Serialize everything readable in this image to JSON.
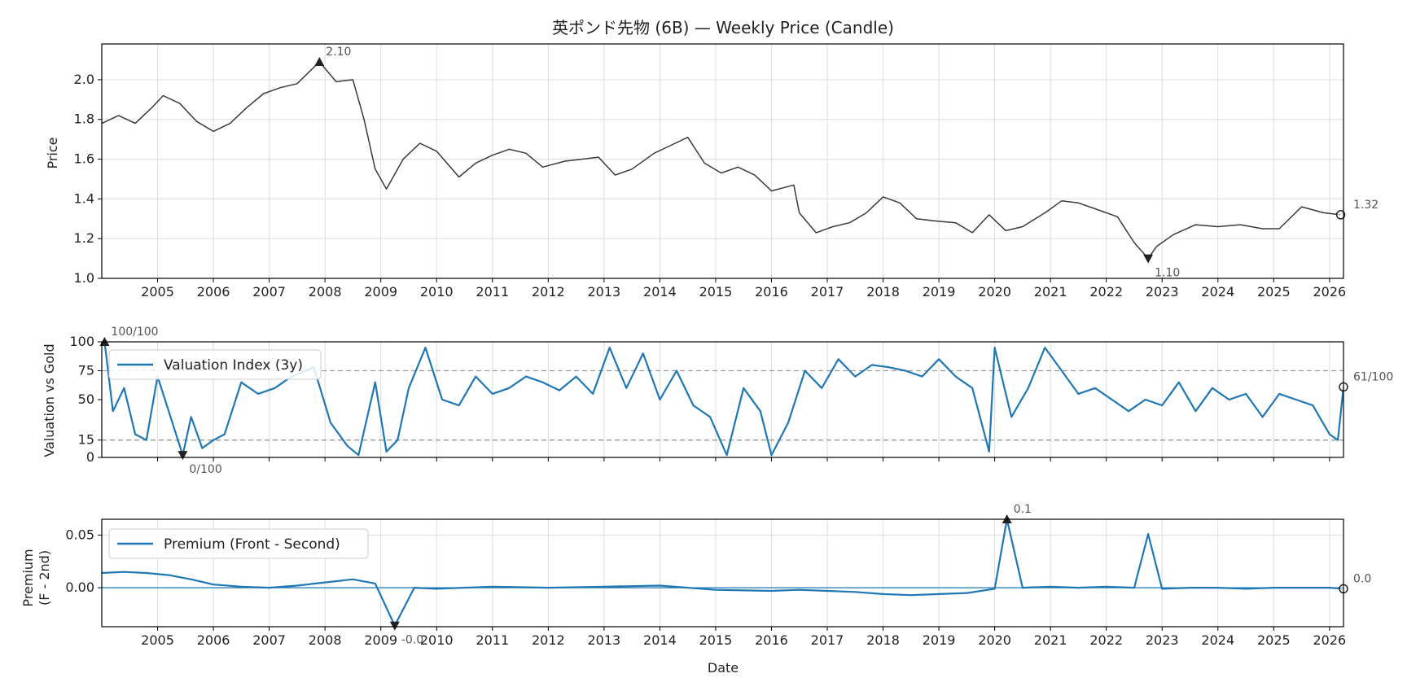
{
  "title": "英ポンド先物 (6B) — Weekly Price (Candle)",
  "colors": {
    "price": "#3a3a3a",
    "series": "#1f77b4",
    "guide": "#999999",
    "marker": "#222222"
  },
  "chart_data": [
    {
      "type": "line",
      "name": "price",
      "ylabel": "Price",
      "ylim": [
        1.0,
        2.18
      ],
      "yticks": [
        1.0,
        1.2,
        1.4,
        1.6,
        1.8,
        2.0
      ],
      "xlim": [
        2004.0,
        2026.25
      ],
      "xticks": [
        2005,
        2006,
        2007,
        2008,
        2009,
        2010,
        2011,
        2012,
        2013,
        2014,
        2015,
        2016,
        2017,
        2018,
        2019,
        2020,
        2021,
        2022,
        2023,
        2024,
        2025,
        2026
      ],
      "grid": true,
      "x": [
        2004.0,
        2004.3,
        2004.6,
        2004.9,
        2005.1,
        2005.4,
        2005.7,
        2006.0,
        2006.3,
        2006.6,
        2006.9,
        2007.2,
        2007.5,
        2007.9,
        2008.2,
        2008.5,
        2008.7,
        2008.9,
        2009.1,
        2009.4,
        2009.7,
        2010.0,
        2010.4,
        2010.7,
        2011.0,
        2011.3,
        2011.6,
        2011.9,
        2012.3,
        2012.6,
        2012.9,
        2013.2,
        2013.5,
        2013.9,
        2014.2,
        2014.5,
        2014.8,
        2015.1,
        2015.4,
        2015.7,
        2016.0,
        2016.4,
        2016.5,
        2016.8,
        2017.1,
        2017.4,
        2017.7,
        2018.0,
        2018.3,
        2018.6,
        2018.9,
        2019.3,
        2019.6,
        2019.9,
        2020.2,
        2020.5,
        2020.9,
        2021.2,
        2021.5,
        2021.9,
        2022.2,
        2022.5,
        2022.75,
        2022.9,
        2023.2,
        2023.6,
        2024.0,
        2024.4,
        2024.8,
        2025.1,
        2025.5,
        2025.9,
        2026.2
      ],
      "y": [
        1.78,
        1.82,
        1.78,
        1.86,
        1.92,
        1.88,
        1.79,
        1.74,
        1.78,
        1.86,
        1.93,
        1.96,
        1.98,
        2.09,
        1.99,
        2.0,
        1.8,
        1.55,
        1.45,
        1.6,
        1.68,
        1.64,
        1.51,
        1.58,
        1.62,
        1.65,
        1.63,
        1.56,
        1.59,
        1.6,
        1.61,
        1.52,
        1.55,
        1.63,
        1.67,
        1.71,
        1.58,
        1.53,
        1.56,
        1.52,
        1.44,
        1.47,
        1.33,
        1.23,
        1.26,
        1.28,
        1.33,
        1.41,
        1.38,
        1.3,
        1.29,
        1.28,
        1.23,
        1.32,
        1.24,
        1.26,
        1.33,
        1.39,
        1.38,
        1.34,
        1.31,
        1.18,
        1.1,
        1.16,
        1.22,
        1.27,
        1.26,
        1.27,
        1.25,
        1.25,
        1.36,
        1.33,
        1.32
      ],
      "annotations": {
        "max_label": "2.10",
        "min_label": "1.10",
        "last_label": "1.32"
      }
    },
    {
      "type": "line",
      "name": "valuation",
      "ylabel": "Valuation vs Gold",
      "ylim": [
        0,
        100
      ],
      "yticks": [
        0,
        15,
        50,
        75,
        100
      ],
      "hlines": [
        15,
        75
      ],
      "legend": "Valuation Index (3y)",
      "legend_position": "top-left",
      "x": [
        2004.05,
        2004.2,
        2004.4,
        2004.6,
        2004.8,
        2005.0,
        2005.2,
        2005.45,
        2005.6,
        2005.8,
        2006.0,
        2006.2,
        2006.5,
        2006.8,
        2007.1,
        2007.4,
        2007.8,
        2008.1,
        2008.4,
        2008.6,
        2008.9,
        2009.1,
        2009.3,
        2009.5,
        2009.8,
        2010.1,
        2010.4,
        2010.7,
        2011.0,
        2011.3,
        2011.6,
        2011.9,
        2012.2,
        2012.5,
        2012.8,
        2013.1,
        2013.4,
        2013.7,
        2014.0,
        2014.3,
        2014.6,
        2014.9,
        2015.2,
        2015.5,
        2015.8,
        2016.0,
        2016.3,
        2016.6,
        2016.9,
        2017.2,
        2017.5,
        2017.8,
        2018.1,
        2018.4,
        2018.7,
        2019.0,
        2019.3,
        2019.6,
        2019.9,
        2020.0,
        2020.3,
        2020.6,
        2020.9,
        2021.2,
        2021.5,
        2021.8,
        2022.1,
        2022.4,
        2022.7,
        2023.0,
        2023.3,
        2023.6,
        2023.9,
        2024.2,
        2024.5,
        2024.8,
        2025.1,
        2025.4,
        2025.7,
        2026.0,
        2026.15,
        2026.25
      ],
      "y": [
        100,
        40,
        60,
        20,
        15,
        70,
        40,
        2,
        35,
        8,
        15,
        20,
        65,
        55,
        60,
        70,
        78,
        30,
        10,
        2,
        65,
        5,
        15,
        60,
        95,
        50,
        45,
        70,
        55,
        60,
        70,
        65,
        58,
        70,
        55,
        95,
        60,
        90,
        50,
        75,
        45,
        35,
        2,
        60,
        40,
        2,
        30,
        75,
        60,
        85,
        70,
        80,
        78,
        75,
        70,
        85,
        70,
        60,
        5,
        95,
        35,
        60,
        95,
        75,
        55,
        60,
        50,
        40,
        50,
        45,
        65,
        40,
        60,
        50,
        55,
        35,
        55,
        50,
        45,
        20,
        15,
        61
      ],
      "annotations": {
        "max_label": "100/100",
        "min_label": "0/100",
        "last_label": "61/100"
      }
    },
    {
      "type": "line",
      "name": "premium",
      "ylabel": "Premium\n(F - 2nd)",
      "xlabel": "Date",
      "ylim": [
        -0.037,
        0.065
      ],
      "yticks": [
        0.0,
        0.05
      ],
      "legend": "Premium (Front - Second)",
      "legend_position": "top-left",
      "x": [
        2004.0,
        2004.4,
        2004.8,
        2005.2,
        2005.6,
        2006.0,
        2006.5,
        2007.0,
        2007.5,
        2008.0,
        2008.5,
        2008.9,
        2009.25,
        2009.6,
        2010.0,
        2011.0,
        2012.0,
        2013.0,
        2014.0,
        2015.0,
        2016.0,
        2016.5,
        2017.0,
        2017.5,
        2018.0,
        2018.5,
        2019.0,
        2019.5,
        2020.0,
        2020.22,
        2020.5,
        2021.0,
        2021.5,
        2022.0,
        2022.5,
        2022.75,
        2023.0,
        2023.5,
        2024.0,
        2024.5,
        2025.0,
        2025.5,
        2026.0,
        2026.25
      ],
      "y": [
        0.014,
        0.015,
        0.014,
        0.012,
        0.008,
        0.003,
        0.001,
        0.0,
        0.002,
        0.005,
        0.008,
        0.004,
        -0.036,
        0.0,
        -0.001,
        0.001,
        0.0,
        0.001,
        0.002,
        -0.002,
        -0.003,
        -0.002,
        -0.003,
        -0.004,
        -0.006,
        -0.007,
        -0.006,
        -0.005,
        -0.001,
        0.065,
        0.0,
        0.001,
        0.0,
        0.001,
        0.0,
        0.051,
        -0.001,
        0.0,
        0.0,
        -0.001,
        0.0,
        0.0,
        0.0,
        -0.001
      ],
      "annotations": {
        "max_label": "0.1",
        "min_label": "-0.0",
        "last_label": "0.0"
      }
    }
  ]
}
